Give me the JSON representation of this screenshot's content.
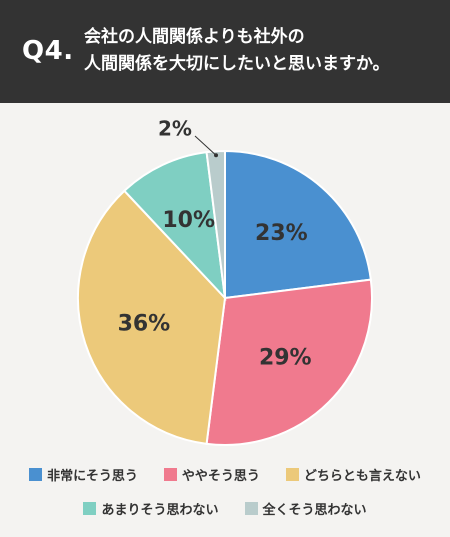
{
  "header": {
    "q_label": "Q4.",
    "question_line1": "会社の人間関係よりも社外の",
    "question_line2": "人間関係を大切にしたいと思いますか。"
  },
  "chart_data": {
    "type": "pie",
    "slices": [
      {
        "label": "非常にそう思う",
        "value": 23,
        "display": "23%",
        "color": "#4a90d0"
      },
      {
        "label": "ややそう思う",
        "value": 29,
        "display": "29%",
        "color": "#f07a8e"
      },
      {
        "label": "どちらとも言えない",
        "value": 36,
        "display": "36%",
        "color": "#ecc97a"
      },
      {
        "label": "あまりそう思わない",
        "value": 10,
        "display": "10%",
        "color": "#7fcfc2"
      },
      {
        "label": "全くそう思わない",
        "value": 2,
        "display": "2%",
        "color": "#b9cccc"
      }
    ],
    "legend_position": "bottom"
  }
}
